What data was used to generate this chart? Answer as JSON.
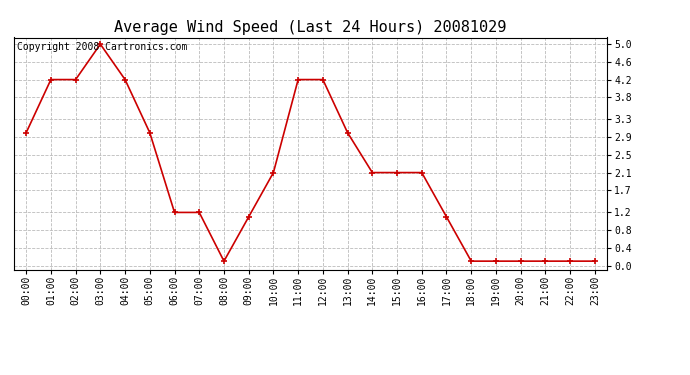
{
  "title": "Average Wind Speed (Last 24 Hours) 20081029",
  "copyright": "Copyright 2008 Cartronics.com",
  "hours": [
    "00:00",
    "01:00",
    "02:00",
    "03:00",
    "04:00",
    "05:00",
    "06:00",
    "07:00",
    "08:00",
    "09:00",
    "10:00",
    "11:00",
    "12:00",
    "13:00",
    "14:00",
    "15:00",
    "16:00",
    "17:00",
    "18:00",
    "19:00",
    "20:00",
    "21:00",
    "22:00",
    "23:00"
  ],
  "values": [
    3.0,
    4.2,
    4.2,
    5.0,
    4.2,
    3.0,
    1.2,
    1.2,
    0.1,
    1.1,
    2.1,
    4.2,
    4.2,
    3.0,
    2.1,
    2.1,
    2.1,
    1.1,
    0.1,
    0.1,
    0.1,
    0.1,
    0.1,
    0.1
  ],
  "line_color": "#cc0000",
  "marker_color": "#cc0000",
  "bg_color": "#ffffff",
  "grid_color": "#bbbbbb",
  "yticks": [
    0.0,
    0.4,
    0.8,
    1.2,
    1.7,
    2.1,
    2.5,
    2.9,
    3.3,
    3.8,
    4.2,
    4.6,
    5.0
  ],
  "ylim": [
    -0.1,
    5.15
  ],
  "title_fontsize": 11,
  "copyright_fontsize": 7,
  "tick_fontsize": 7,
  "figsize": [
    6.9,
    3.75
  ],
  "dpi": 100
}
